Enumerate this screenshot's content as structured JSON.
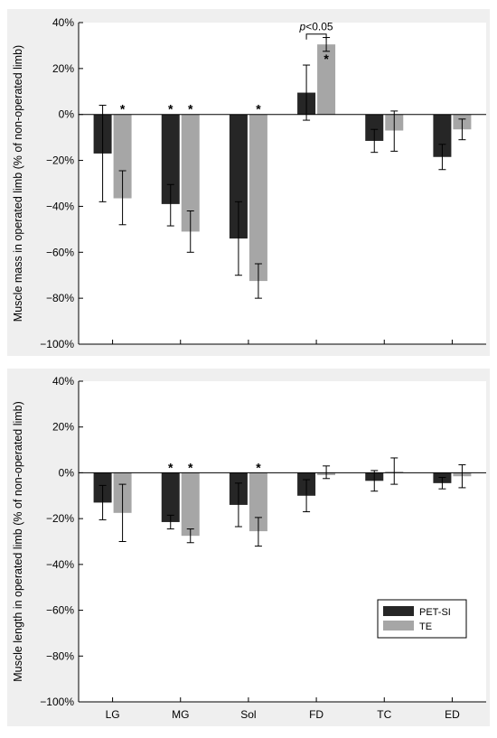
{
  "chart_data": [
    {
      "type": "bar",
      "ylabel": "Muscle mass in operated limb (% of non-operated limb)",
      "ylim": [
        -100,
        40
      ],
      "yticks": [
        40,
        20,
        0,
        -20,
        -40,
        -60,
        -80,
        -100
      ],
      "ytick_labels": [
        "40%",
        "20%",
        "0%",
        "−20%",
        "−40%",
        "−60%",
        "−80%",
        "−100%"
      ],
      "categories": [
        "LG",
        "MG",
        "Sol",
        "FD",
        "TC",
        "ED"
      ],
      "show_category_labels": false,
      "series": [
        {
          "name": "PET-SI",
          "color": "#262626",
          "values": [
            -17,
            -39,
            -54,
            9.5,
            -11.5,
            -18.5
          ],
          "err_low": [
            -38,
            -48.5,
            -70,
            -2.5,
            -16.5,
            -24
          ],
          "err_high": [
            4,
            -30.5,
            -38,
            21.5,
            -6.5,
            -13
          ]
        },
        {
          "name": "TE",
          "color": "#a6a6a6",
          "values": [
            -36.5,
            -51,
            -72.5,
            30.5,
            -7,
            -6.5
          ],
          "err_low": [
            -48,
            -60,
            -80,
            27.5,
            -16,
            -11
          ],
          "err_high": [
            -24.5,
            -42,
            -65,
            33.5,
            1.5,
            -2
          ]
        }
      ],
      "significance": [
        {
          "category": "LG",
          "series": "TE",
          "label": "*",
          "position": "above"
        },
        {
          "category": "MG",
          "series": "PET-SI",
          "label": "*",
          "position": "above"
        },
        {
          "category": "MG",
          "series": "TE",
          "label": "*",
          "position": "above"
        },
        {
          "category": "Sol",
          "series": "TE",
          "label": "*",
          "position": "above"
        },
        {
          "category": "FD",
          "series": "TE",
          "label": "*",
          "position": "below"
        }
      ],
      "bracket": {
        "category": "FD",
        "label_italic": "p",
        "label_rest": "<0.05",
        "y": 35
      },
      "legend": null
    },
    {
      "type": "bar",
      "ylabel": "Muscle length in operated limb (% of non-operated limb)",
      "ylim": [
        -100,
        40
      ],
      "yticks": [
        40,
        20,
        0,
        -20,
        -40,
        -60,
        -80,
        -100
      ],
      "ytick_labels": [
        "40%",
        "20%",
        "0%",
        "−20%",
        "−40%",
        "−60%",
        "−80%",
        "−100%"
      ],
      "categories": [
        "LG",
        "MG",
        "Sol",
        "FD",
        "TC",
        "ED"
      ],
      "show_category_labels": true,
      "series": [
        {
          "name": "PET-SI",
          "color": "#262626",
          "values": [
            -13,
            -21.5,
            -14,
            -10,
            -3.5,
            -4.5
          ],
          "err_low": [
            -20.5,
            -24.5,
            -23.5,
            -17,
            -8,
            -7
          ],
          "err_high": [
            -5.5,
            -18.5,
            -4.5,
            -3,
            1,
            -2
          ]
        },
        {
          "name": "TE",
          "color": "#a6a6a6",
          "values": [
            -17.5,
            -27.5,
            -25.5,
            -1,
            0.5,
            -1.5
          ],
          "err_low": [
            -30,
            -30.5,
            -32,
            -2.5,
            -5,
            -6.5
          ],
          "err_high": [
            -5,
            -24.5,
            -19.5,
            3,
            6.5,
            3.5
          ]
        }
      ],
      "significance": [
        {
          "category": "MG",
          "series": "PET-SI",
          "label": "*",
          "position": "above"
        },
        {
          "category": "MG",
          "series": "TE",
          "label": "*",
          "position": "above"
        },
        {
          "category": "Sol",
          "series": "TE",
          "label": "*",
          "position": "above"
        }
      ],
      "legend": {
        "position": "bottom-right",
        "entries": [
          "PET-SI",
          "TE"
        ]
      }
    }
  ]
}
